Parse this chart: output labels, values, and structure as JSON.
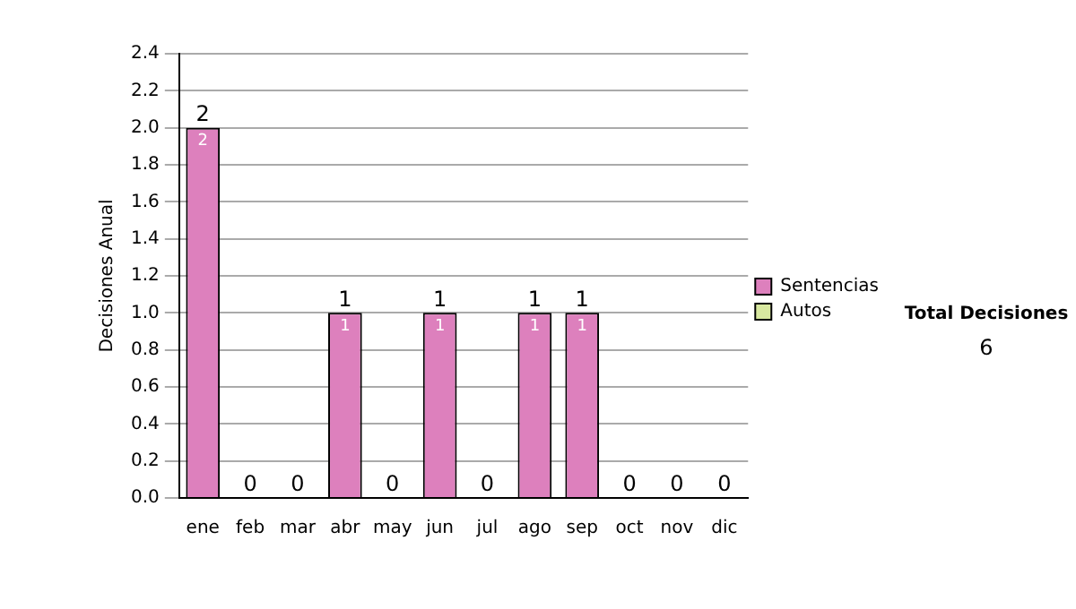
{
  "chart_data": {
    "type": "bar",
    "ylabel": "Decisiones Anual",
    "categories": [
      "ene",
      "feb",
      "mar",
      "abr",
      "may",
      "jun",
      "jul",
      "ago",
      "sep",
      "oct",
      "nov",
      "dic"
    ],
    "series": [
      {
        "name": "Sentencias",
        "color": "#dd80bd",
        "values": [
          2,
          0,
          0,
          1,
          0,
          1,
          0,
          1,
          1,
          0,
          0,
          0
        ],
        "value_labels": [
          "2",
          null,
          null,
          "1",
          null,
          "1",
          null,
          "1",
          "1",
          null,
          null,
          null
        ]
      },
      {
        "name": "Autos",
        "color": "#d8e8a0",
        "values": [
          0,
          0,
          0,
          0,
          0,
          0,
          0,
          0,
          0,
          0,
          0,
          0
        ]
      }
    ],
    "stacked": true,
    "totals": [
      "2",
      "0",
      "0",
      "1",
      "0",
      "1",
      "0",
      "1",
      "1",
      "0",
      "0",
      "0"
    ],
    "ylim": [
      0,
      2.4
    ],
    "yticks": [
      {
        "value": 0,
        "label": "0.0"
      },
      0.2,
      0.4,
      0.6,
      0.8,
      {
        "value": 1,
        "label": "1.0"
      },
      1.2,
      1.4,
      1.6,
      1.8,
      {
        "value": 2,
        "label": "2.0"
      },
      2.2,
      2.4
    ],
    "grid": "y",
    "legend": "right",
    "annotations": [
      "Total Decisiones",
      "6"
    ]
  }
}
